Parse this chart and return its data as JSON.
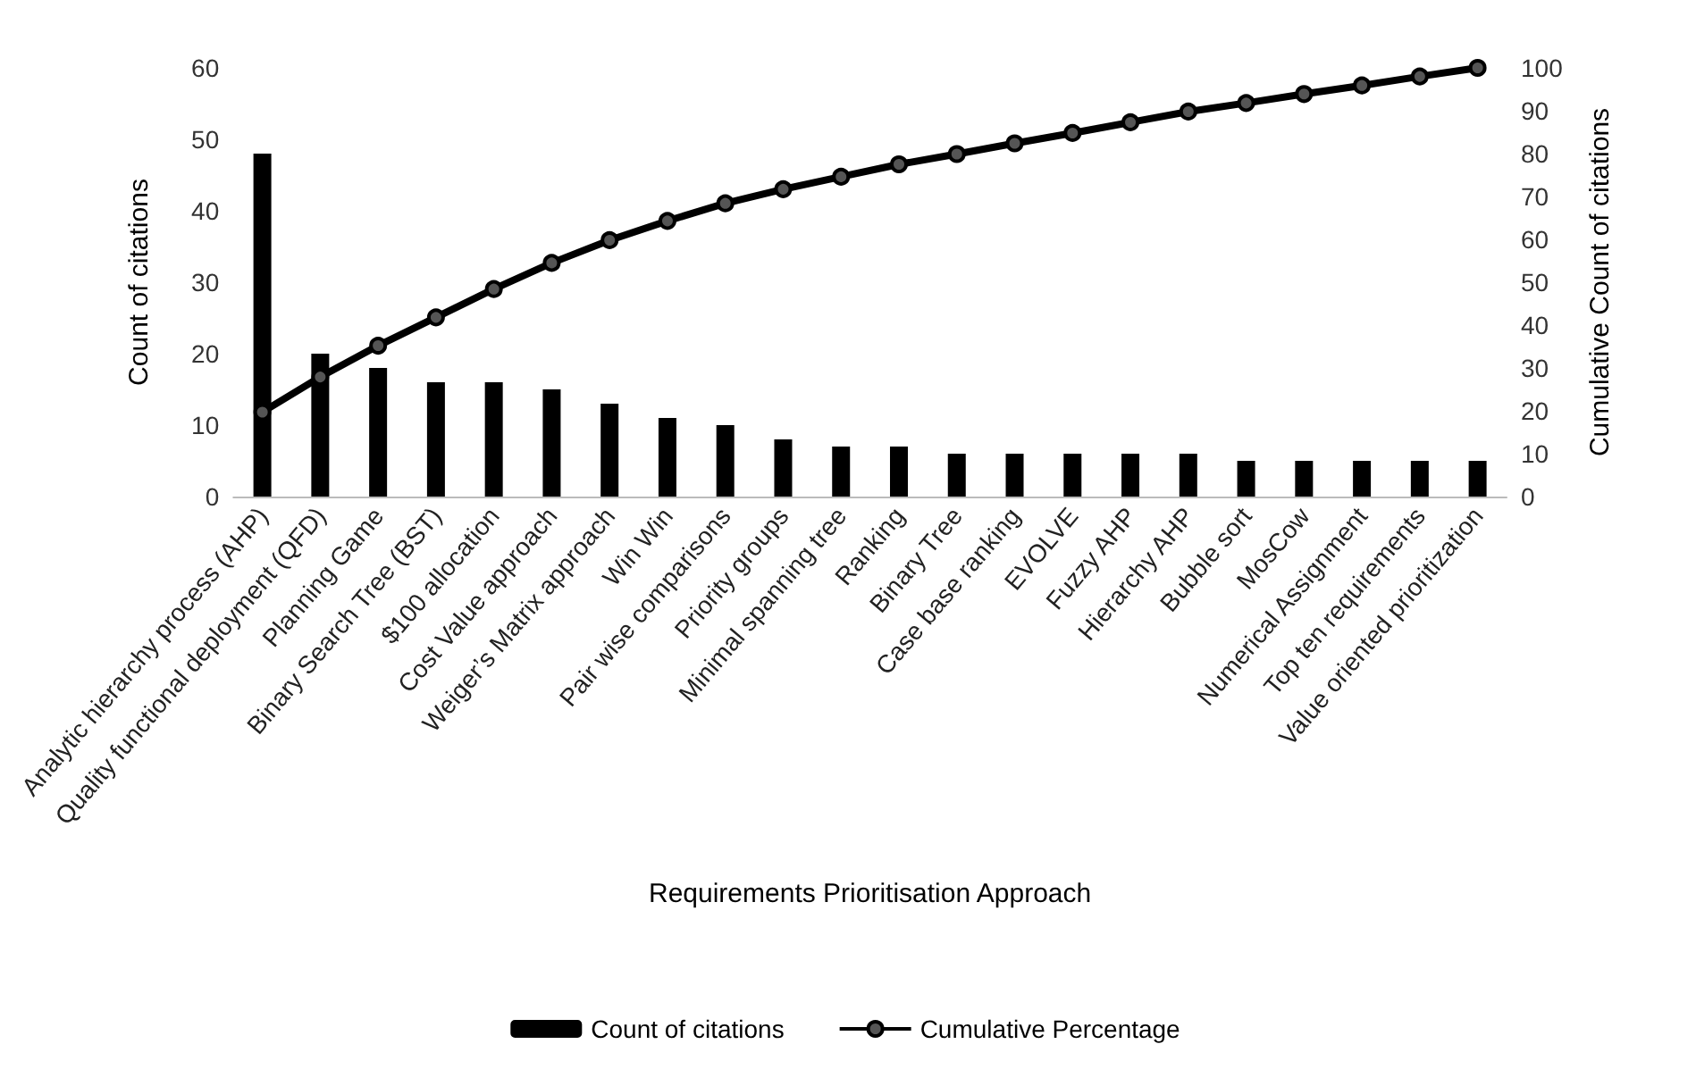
{
  "chart_data": {
    "type": "bar",
    "xlabel": "Requirements Prioritisation Approach",
    "ylabel": "Count of citations",
    "y2label": "Cumulative Count of citations",
    "categories": [
      "Analytic hierarchy process (AHP)",
      "Quality functional deployment (QFD)",
      "Planning Game",
      "Binary Search Tree (BST)",
      "$100 allocation",
      "Cost Value approach",
      "Weiger’s Matrix approach",
      "Win Win",
      "Pair wise comparisons",
      "Priority groups",
      "Minimal spanning tree",
      "Ranking",
      "Binary Tree",
      "Case base ranking",
      "EVOLVE",
      "Fuzzy AHP",
      "Hierarchy AHP",
      "Bubble sort",
      "MosCow",
      "Numerical Assignment",
      "Top ten requirements",
      "Value oriented prioritization"
    ],
    "series": [
      {
        "name": "Count of citations",
        "color": "#000000",
        "values": [
          48,
          20,
          18,
          16,
          16,
          15,
          13,
          11,
          10,
          8,
          7,
          7,
          6,
          6,
          6,
          6,
          6,
          5,
          5,
          5,
          5,
          5
        ]
      },
      {
        "name": "Cumulative Percentage",
        "type": "line",
        "axis": "y2",
        "color": "#000000",
        "marker": "circle",
        "values": [
          19.7,
          27.9,
          35.2,
          41.8,
          48.4,
          54.5,
          59.8,
          64.3,
          68.4,
          71.7,
          74.6,
          77.5,
          79.9,
          82.4,
          84.8,
          87.3,
          89.8,
          91.8,
          93.9,
          95.9,
          98.0,
          100
        ]
      }
    ],
    "ylim": [
      0,
      60
    ],
    "yticks": [
      0,
      10,
      20,
      30,
      40,
      50,
      60
    ],
    "y2lim": [
      0,
      100
    ],
    "y2ticks": [
      0,
      10,
      20,
      30,
      40,
      50,
      60,
      70,
      80,
      90,
      100
    ],
    "grid": false,
    "legend": "bottom"
  }
}
